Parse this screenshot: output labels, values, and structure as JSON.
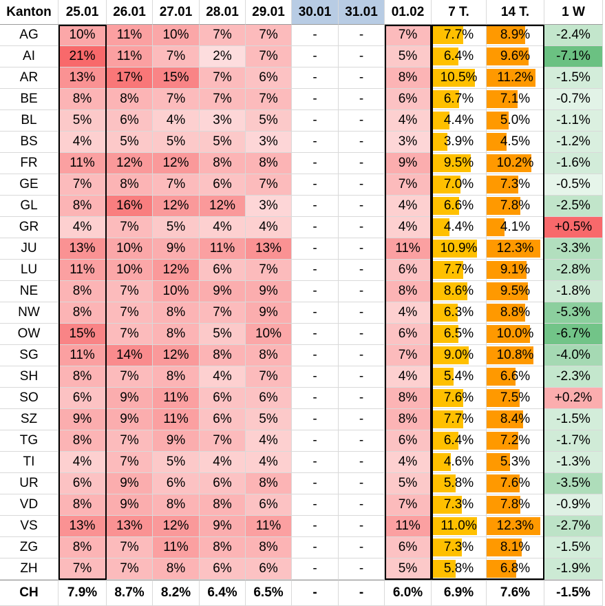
{
  "table": {
    "headers": [
      "Kanton",
      "25.01",
      "26.01",
      "27.01",
      "28.01",
      "29.01",
      "30.01",
      "31.01",
      "01.02",
      "7 T.",
      "14 T.",
      "1 W"
    ],
    "weekend_columns": [
      6,
      7
    ],
    "rows": [
      {
        "kanton": "AG",
        "days": [
          10,
          11,
          10,
          7,
          7,
          null,
          null,
          7
        ],
        "t7": 7.7,
        "t14": 8.9,
        "w1": -2.4
      },
      {
        "kanton": "AI",
        "days": [
          21,
          11,
          7,
          2,
          7,
          null,
          null,
          5
        ],
        "t7": 6.4,
        "t14": 9.6,
        "w1": -7.1
      },
      {
        "kanton": "AR",
        "days": [
          13,
          17,
          15,
          7,
          6,
          null,
          null,
          8
        ],
        "t7": 10.5,
        "t14": 11.2,
        "w1": -1.5
      },
      {
        "kanton": "BE",
        "days": [
          8,
          8,
          7,
          7,
          7,
          null,
          null,
          6
        ],
        "t7": 6.7,
        "t14": 7.1,
        "w1": -0.7
      },
      {
        "kanton": "BL",
        "days": [
          5,
          6,
          4,
          3,
          5,
          null,
          null,
          4
        ],
        "t7": 4.4,
        "t14": 5.0,
        "w1": -1.1
      },
      {
        "kanton": "BS",
        "days": [
          4,
          5,
          5,
          5,
          3,
          null,
          null,
          3
        ],
        "t7": 3.9,
        "t14": 4.5,
        "w1": -1.2
      },
      {
        "kanton": "FR",
        "days": [
          11,
          12,
          12,
          8,
          8,
          null,
          null,
          9
        ],
        "t7": 9.5,
        "t14": 10.2,
        "w1": -1.6
      },
      {
        "kanton": "GE",
        "days": [
          7,
          8,
          7,
          6,
          7,
          null,
          null,
          7
        ],
        "t7": 7.0,
        "t14": 7.3,
        "w1": -0.5
      },
      {
        "kanton": "GL",
        "days": [
          8,
          16,
          12,
          12,
          3,
          null,
          null,
          4
        ],
        "t7": 6.6,
        "t14": 7.8,
        "w1": -2.5
      },
      {
        "kanton": "GR",
        "days": [
          4,
          7,
          5,
          4,
          4,
          null,
          null,
          4
        ],
        "t7": 4.4,
        "t14": 4.1,
        "w1": 0.5
      },
      {
        "kanton": "JU",
        "days": [
          13,
          10,
          9,
          11,
          13,
          null,
          null,
          11
        ],
        "t7": 10.9,
        "t14": 12.3,
        "w1": -3.3
      },
      {
        "kanton": "LU",
        "days": [
          11,
          10,
          12,
          6,
          7,
          null,
          null,
          6
        ],
        "t7": 7.7,
        "t14": 9.1,
        "w1": -2.8
      },
      {
        "kanton": "NE",
        "days": [
          8,
          7,
          10,
          9,
          9,
          null,
          null,
          8
        ],
        "t7": 8.6,
        "t14": 9.5,
        "w1": -1.8
      },
      {
        "kanton": "NW",
        "days": [
          8,
          7,
          8,
          7,
          9,
          null,
          null,
          4
        ],
        "t7": 6.3,
        "t14": 8.8,
        "w1": -5.3
      },
      {
        "kanton": "OW",
        "days": [
          15,
          7,
          8,
          5,
          10,
          null,
          null,
          6
        ],
        "t7": 6.5,
        "t14": 10.0,
        "w1": -6.7
      },
      {
        "kanton": "SG",
        "days": [
          11,
          14,
          12,
          8,
          8,
          null,
          null,
          7
        ],
        "t7": 9.0,
        "t14": 10.8,
        "w1": -4.0
      },
      {
        "kanton": "SH",
        "days": [
          8,
          7,
          8,
          4,
          7,
          null,
          null,
          4
        ],
        "t7": 5.4,
        "t14": 6.6,
        "w1": -2.3
      },
      {
        "kanton": "SO",
        "days": [
          6,
          9,
          11,
          6,
          6,
          null,
          null,
          8
        ],
        "t7": 7.6,
        "t14": 7.5,
        "w1": 0.2
      },
      {
        "kanton": "SZ",
        "days": [
          9,
          9,
          11,
          6,
          5,
          null,
          null,
          8
        ],
        "t7": 7.7,
        "t14": 8.4,
        "w1": -1.5
      },
      {
        "kanton": "TG",
        "days": [
          8,
          7,
          9,
          7,
          4,
          null,
          null,
          6
        ],
        "t7": 6.4,
        "t14": 7.2,
        "w1": -1.7
      },
      {
        "kanton": "TI",
        "days": [
          4,
          7,
          5,
          4,
          4,
          null,
          null,
          4
        ],
        "t7": 4.6,
        "t14": 5.3,
        "w1": -1.3
      },
      {
        "kanton": "UR",
        "days": [
          6,
          9,
          6,
          6,
          8,
          null,
          null,
          5
        ],
        "t7": 5.8,
        "t14": 7.6,
        "w1": -3.5
      },
      {
        "kanton": "VD",
        "days": [
          8,
          9,
          8,
          8,
          6,
          null,
          null,
          7
        ],
        "t7": 7.3,
        "t14": 7.8,
        "w1": -0.9
      },
      {
        "kanton": "VS",
        "days": [
          13,
          13,
          12,
          9,
          11,
          null,
          null,
          11
        ],
        "t7": 11.0,
        "t14": 12.3,
        "w1": -2.7
      },
      {
        "kanton": "ZG",
        "days": [
          8,
          7,
          11,
          8,
          8,
          null,
          null,
          6
        ],
        "t7": 7.3,
        "t14": 8.1,
        "w1": -1.5
      },
      {
        "kanton": "ZH",
        "days": [
          7,
          7,
          8,
          6,
          6,
          null,
          null,
          5
        ],
        "t7": 5.8,
        "t14": 6.8,
        "w1": -1.9
      }
    ],
    "footer": [
      "CH",
      "7.9%",
      "8.7%",
      "8.2%",
      "6.4%",
      "6.5%",
      "-",
      "-",
      "6.0%",
      "6.9%",
      "7.6%",
      "-1.5%"
    ]
  },
  "chart_data": {
    "type": "table",
    "columns": [
      "Kanton",
      "25.01",
      "26.01",
      "27.01",
      "28.01",
      "29.01",
      "30.01",
      "31.01",
      "01.02",
      "7 T.",
      "14 T.",
      "1 W"
    ],
    "rows": [
      [
        "AG",
        "10%",
        "11%",
        "10%",
        "7%",
        "7%",
        "-",
        "-",
        "7%",
        "7.7%",
        "8.9%",
        "-2.4%"
      ],
      [
        "AI",
        "21%",
        "11%",
        "7%",
        "2%",
        "7%",
        "-",
        "-",
        "5%",
        "6.4%",
        "9.6%",
        "-7.1%"
      ],
      [
        "AR",
        "13%",
        "17%",
        "15%",
        "7%",
        "6%",
        "-",
        "-",
        "8%",
        "10.5%",
        "11.2%",
        "-1.5%"
      ],
      [
        "BE",
        "8%",
        "8%",
        "7%",
        "7%",
        "7%",
        "-",
        "-",
        "6%",
        "6.7%",
        "7.1%",
        "-0.7%"
      ],
      [
        "BL",
        "5%",
        "6%",
        "4%",
        "3%",
        "5%",
        "-",
        "-",
        "4%",
        "4.4%",
        "5.0%",
        "-1.1%"
      ],
      [
        "BS",
        "4%",
        "5%",
        "5%",
        "5%",
        "3%",
        "-",
        "-",
        "3%",
        "3.9%",
        "4.5%",
        "-1.2%"
      ],
      [
        "FR",
        "11%",
        "12%",
        "12%",
        "8%",
        "8%",
        "-",
        "-",
        "9%",
        "9.5%",
        "10.2%",
        "-1.6%"
      ],
      [
        "GE",
        "7%",
        "8%",
        "7%",
        "6%",
        "7%",
        "-",
        "-",
        "7%",
        "7.0%",
        "7.3%",
        "-0.5%"
      ],
      [
        "GL",
        "8%",
        "16%",
        "12%",
        "12%",
        "3%",
        "-",
        "-",
        "4%",
        "6.6%",
        "7.8%",
        "-2.5%"
      ],
      [
        "GR",
        "4%",
        "7%",
        "5%",
        "4%",
        "4%",
        "-",
        "-",
        "4%",
        "4.4%",
        "4.1%",
        "+0.5%"
      ],
      [
        "JU",
        "13%",
        "10%",
        "9%",
        "11%",
        "13%",
        "-",
        "-",
        "11%",
        "10.9%",
        "12.3%",
        "-3.3%"
      ],
      [
        "LU",
        "11%",
        "10%",
        "12%",
        "6%",
        "7%",
        "-",
        "-",
        "6%",
        "7.7%",
        "9.1%",
        "-2.8%"
      ],
      [
        "NE",
        "8%",
        "7%",
        "10%",
        "9%",
        "9%",
        "-",
        "-",
        "8%",
        "8.6%",
        "9.5%",
        "-1.8%"
      ],
      [
        "NW",
        "8%",
        "7%",
        "8%",
        "7%",
        "9%",
        "-",
        "-",
        "4%",
        "6.3%",
        "8.8%",
        "-5.3%"
      ],
      [
        "OW",
        "15%",
        "7%",
        "8%",
        "5%",
        "10%",
        "-",
        "-",
        "6%",
        "6.5%",
        "10.0%",
        "-6.7%"
      ],
      [
        "SG",
        "11%",
        "14%",
        "12%",
        "8%",
        "8%",
        "-",
        "-",
        "7%",
        "9.0%",
        "10.8%",
        "-4.0%"
      ],
      [
        "SH",
        "8%",
        "7%",
        "8%",
        "4%",
        "7%",
        "-",
        "-",
        "4%",
        "5.4%",
        "6.6%",
        "-2.3%"
      ],
      [
        "SO",
        "6%",
        "9%",
        "11%",
        "6%",
        "6%",
        "-",
        "-",
        "8%",
        "7.6%",
        "7.5%",
        "+0.2%"
      ],
      [
        "SZ",
        "9%",
        "9%",
        "11%",
        "6%",
        "5%",
        "-",
        "-",
        "8%",
        "7.7%",
        "8.4%",
        "-1.5%"
      ],
      [
        "TG",
        "8%",
        "7%",
        "9%",
        "7%",
        "4%",
        "-",
        "-",
        "6%",
        "6.4%",
        "7.2%",
        "-1.7%"
      ],
      [
        "TI",
        "4%",
        "7%",
        "5%",
        "4%",
        "4%",
        "-",
        "-",
        "4%",
        "4.6%",
        "5.3%",
        "-1.3%"
      ],
      [
        "UR",
        "6%",
        "9%",
        "6%",
        "6%",
        "8%",
        "-",
        "-",
        "5%",
        "5.8%",
        "7.6%",
        "-3.5%"
      ],
      [
        "VD",
        "8%",
        "9%",
        "8%",
        "8%",
        "6%",
        "-",
        "-",
        "7%",
        "7.3%",
        "7.8%",
        "-0.9%"
      ],
      [
        "VS",
        "13%",
        "13%",
        "12%",
        "9%",
        "11%",
        "-",
        "-",
        "11%",
        "11.0%",
        "12.3%",
        "-2.7%"
      ],
      [
        "ZG",
        "8%",
        "7%",
        "11%",
        "8%",
        "8%",
        "-",
        "-",
        "6%",
        "7.3%",
        "8.1%",
        "-1.5%"
      ],
      [
        "ZH",
        "7%",
        "7%",
        "8%",
        "6%",
        "6%",
        "-",
        "-",
        "5%",
        "5.8%",
        "6.8%",
        "-1.9%"
      ],
      [
        "CH",
        "7.9%",
        "8.7%",
        "8.2%",
        "6.4%",
        "6.5%",
        "-",
        "-",
        "6.0%",
        "6.9%",
        "7.6%",
        "-1.5%"
      ]
    ],
    "heat_scale": {
      "low": "#ffffff",
      "high": "#f8696b"
    },
    "bar_colors": {
      "t7": "#ffc000",
      "t14": "#ff9900"
    },
    "change_colors": {
      "negative": "#63be7b",
      "positive": "#f8696b"
    }
  }
}
